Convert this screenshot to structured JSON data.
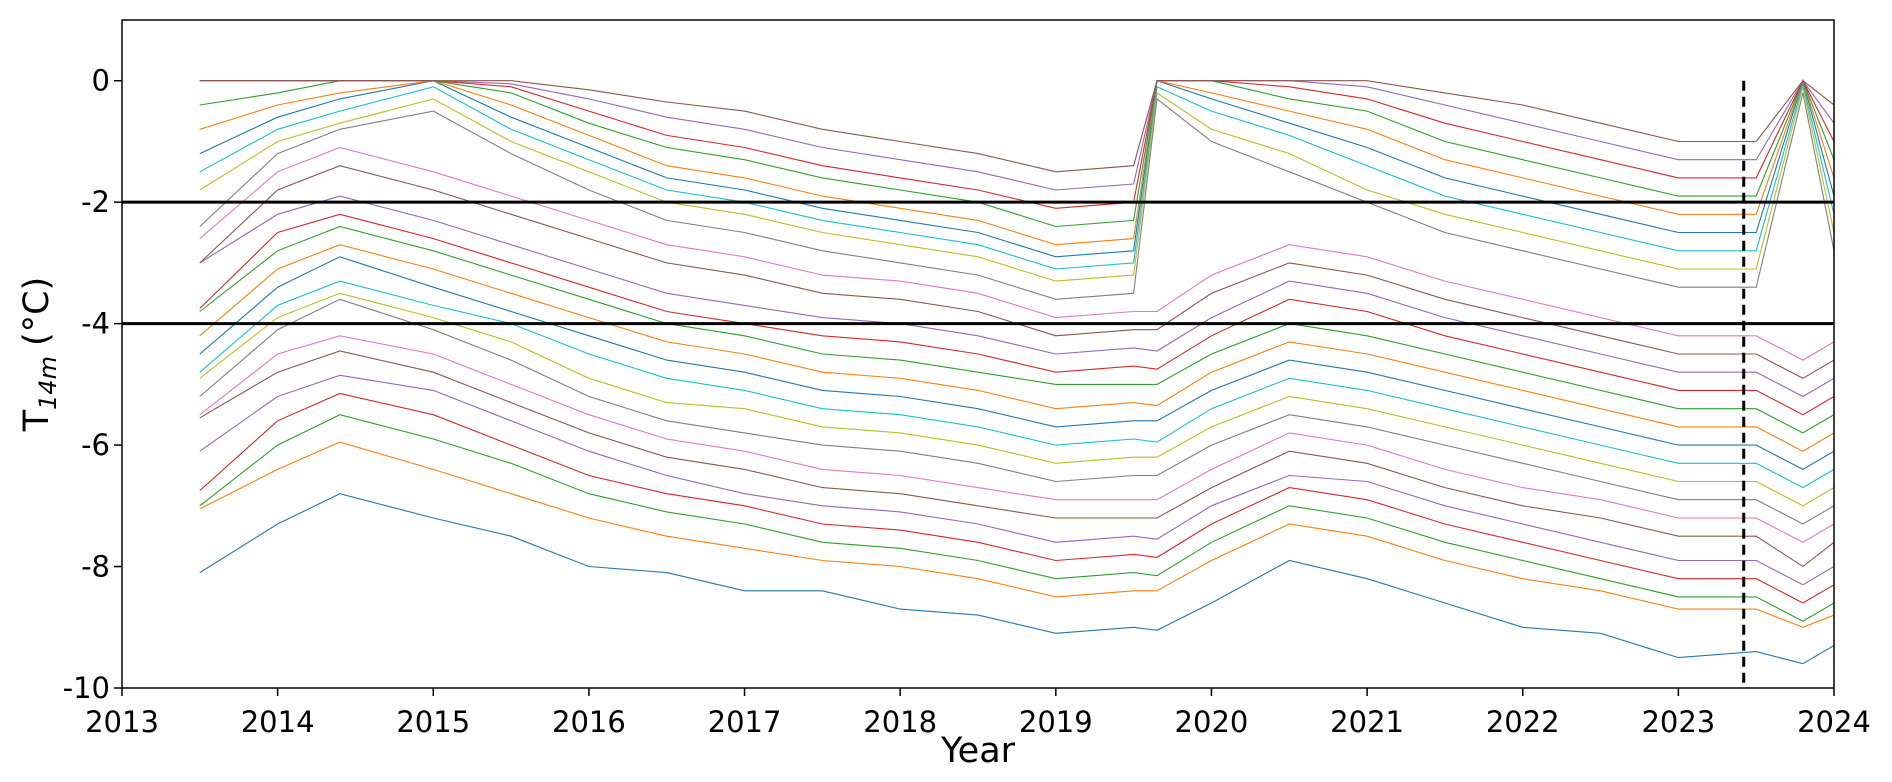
{
  "chart_data": {
    "type": "line",
    "title": "",
    "xlabel": "Year",
    "ylabel_main": "T",
    "ylabel_sub": "14m",
    "ylabel_unit": "(°C)",
    "xlim": [
      2013,
      2024
    ],
    "ylim": [
      -10,
      1
    ],
    "x_ticks": [
      2013,
      2014,
      2015,
      2016,
      2017,
      2018,
      2019,
      2020,
      2021,
      2022,
      2023,
      2024
    ],
    "x_tick_labels": [
      "2013",
      "2014",
      "2015",
      "2016",
      "2017",
      "2018",
      "2019",
      "2020",
      "2021",
      "2022",
      "2023",
      "2024"
    ],
    "y_ticks": [
      0,
      -2,
      -4,
      -6,
      -8,
      -10
    ],
    "y_tick_labels": [
      "0",
      "-2",
      "-4",
      "-6",
      "-8",
      "-10"
    ],
    "grid": false,
    "reference_lines": [
      {
        "orientation": "horizontal",
        "y": -2,
        "style": "solid",
        "color": "#000000"
      },
      {
        "orientation": "horizontal",
        "y": -4,
        "style": "solid",
        "color": "#000000"
      },
      {
        "orientation": "vertical",
        "x": 2023.42,
        "style": "dashed",
        "color": "#000000"
      }
    ],
    "palette": [
      "#1f77b4",
      "#ff7f0e",
      "#2ca02c",
      "#d62728",
      "#9467bd",
      "#8c564b",
      "#e377c2",
      "#7f7f7f",
      "#bcbd22",
      "#17becf"
    ],
    "series_x": [
      2013.5,
      2014.0,
      2014.4,
      2015.0,
      2015.5,
      2016.0,
      2016.5,
      2017.0,
      2017.5,
      2018.0,
      2018.5,
      2019.0,
      2019.5,
      2019.65,
      2020.0,
      2020.5,
      2021.0,
      2021.5,
      2022.0,
      2022.5,
      2023.0,
      2023.5,
      2023.8,
      2024.0
    ],
    "series": [
      {
        "values": [
          -8.1,
          -7.3,
          -6.8,
          -7.2,
          -7.5,
          -8.0,
          -8.1,
          -8.4,
          -8.4,
          -8.7,
          -8.8,
          -9.1,
          -9.0,
          -9.05,
          -8.6,
          -7.9,
          -8.2,
          -8.6,
          -9.0,
          -9.1,
          -9.5,
          -9.4,
          -9.6,
          -9.3
        ]
      },
      {
        "values": [
          -7.05,
          -6.4,
          -5.95,
          -6.4,
          -6.8,
          -7.2,
          -7.5,
          -7.7,
          -7.9,
          -8.0,
          -8.2,
          -8.5,
          -8.4,
          -8.4,
          -7.9,
          -7.3,
          -7.5,
          -7.9,
          -8.2,
          -8.4,
          -8.7,
          -8.7,
          -9.0,
          -8.8
        ]
      },
      {
        "values": [
          -7.0,
          -6.0,
          -5.5,
          -5.9,
          -6.3,
          -6.8,
          -7.1,
          -7.3,
          -7.6,
          -7.7,
          -7.9,
          -8.2,
          -8.1,
          -8.15,
          -7.6,
          -7.0,
          -7.2,
          -7.6,
          -7.9,
          -8.2,
          -8.5,
          -8.5,
          -8.9,
          -8.6
        ]
      },
      {
        "values": [
          -6.75,
          -5.6,
          -5.15,
          -5.5,
          -6.0,
          -6.5,
          -6.8,
          -7.0,
          -7.3,
          -7.4,
          -7.6,
          -7.9,
          -7.8,
          -7.85,
          -7.3,
          -6.7,
          -6.9,
          -7.3,
          -7.6,
          -7.9,
          -8.2,
          -8.2,
          -8.6,
          -8.3
        ]
      },
      {
        "values": [
          -6.1,
          -5.2,
          -4.85,
          -5.1,
          -5.6,
          -6.1,
          -6.5,
          -6.8,
          -7.0,
          -7.1,
          -7.3,
          -7.6,
          -7.5,
          -7.55,
          -7.0,
          -6.5,
          -6.6,
          -7.0,
          -7.3,
          -7.6,
          -7.9,
          -7.9,
          -8.3,
          -8.0
        ]
      },
      {
        "values": [
          -5.55,
          -4.8,
          -4.45,
          -4.8,
          -5.3,
          -5.8,
          -6.2,
          -6.4,
          -6.7,
          -6.8,
          -7.0,
          -7.2,
          -7.2,
          -7.2,
          -6.7,
          -6.1,
          -6.3,
          -6.7,
          -7.0,
          -7.2,
          -7.5,
          -7.5,
          -8.0,
          -7.6
        ]
      },
      {
        "values": [
          -5.5,
          -4.5,
          -4.2,
          -4.5,
          -5.0,
          -5.5,
          -5.9,
          -6.1,
          -6.4,
          -6.5,
          -6.7,
          -6.9,
          -6.9,
          -6.9,
          -6.4,
          -5.8,
          -6.0,
          -6.4,
          -6.7,
          -6.9,
          -7.2,
          -7.2,
          -7.6,
          -7.3
        ]
      },
      {
        "values": [
          -5.2,
          -4.1,
          -3.6,
          -4.1,
          -4.6,
          -5.2,
          -5.6,
          -5.8,
          -6.0,
          -6.1,
          -6.3,
          -6.6,
          -6.5,
          -6.5,
          -6.0,
          -5.5,
          -5.7,
          -6.0,
          -6.3,
          -6.6,
          -6.9,
          -6.9,
          -7.3,
          -7.0
        ]
      },
      {
        "values": [
          -4.9,
          -3.9,
          -3.5,
          -3.9,
          -4.3,
          -4.9,
          -5.3,
          -5.4,
          -5.7,
          -5.8,
          -6.0,
          -6.3,
          -6.2,
          -6.2,
          -5.7,
          -5.2,
          -5.4,
          -5.7,
          -6.0,
          -6.3,
          -6.6,
          -6.6,
          -7.0,
          -6.7
        ]
      },
      {
        "values": [
          -4.8,
          -3.7,
          -3.3,
          -3.7,
          -4.0,
          -4.5,
          -4.9,
          -5.1,
          -5.4,
          -5.5,
          -5.7,
          -6.0,
          -5.9,
          -5.95,
          -5.4,
          -4.9,
          -5.1,
          -5.4,
          -5.7,
          -6.0,
          -6.3,
          -6.3,
          -6.7,
          -6.4
        ]
      },
      {
        "values": [
          -4.5,
          -3.4,
          -2.9,
          -3.4,
          -3.8,
          -4.2,
          -4.6,
          -4.8,
          -5.1,
          -5.2,
          -5.4,
          -5.7,
          -5.6,
          -5.6,
          -5.1,
          -4.6,
          -4.8,
          -5.1,
          -5.4,
          -5.7,
          -6.0,
          -6.0,
          -6.4,
          -6.1
        ]
      },
      {
        "values": [
          -4.2,
          -3.1,
          -2.7,
          -3.1,
          -3.5,
          -3.9,
          -4.3,
          -4.5,
          -4.8,
          -4.9,
          -5.1,
          -5.4,
          -5.3,
          -5.35,
          -4.8,
          -4.3,
          -4.5,
          -4.8,
          -5.1,
          -5.4,
          -5.7,
          -5.7,
          -6.1,
          -5.8
        ]
      },
      {
        "values": [
          -3.8,
          -2.8,
          -2.4,
          -2.8,
          -3.2,
          -3.6,
          -4.0,
          -4.2,
          -4.5,
          -4.6,
          -4.8,
          -5.0,
          -5.0,
          -5.0,
          -4.5,
          -4.0,
          -4.2,
          -4.5,
          -4.8,
          -5.1,
          -5.4,
          -5.4,
          -5.8,
          -5.5
        ]
      },
      {
        "values": [
          -3.75,
          -2.5,
          -2.2,
          -2.6,
          -3.0,
          -3.4,
          -3.8,
          -4.0,
          -4.2,
          -4.3,
          -4.5,
          -4.8,
          -4.7,
          -4.75,
          -4.2,
          -3.6,
          -3.8,
          -4.2,
          -4.5,
          -4.8,
          -5.1,
          -5.1,
          -5.5,
          -5.2
        ]
      },
      {
        "values": [
          -3.0,
          -2.2,
          -1.9,
          -2.3,
          -2.7,
          -3.1,
          -3.5,
          -3.7,
          -3.9,
          -4.0,
          -4.2,
          -4.5,
          -4.4,
          -4.45,
          -3.9,
          -3.3,
          -3.5,
          -3.9,
          -4.2,
          -4.5,
          -4.8,
          -4.8,
          -5.2,
          -4.9
        ]
      },
      {
        "values": [
          -3.0,
          -1.8,
          -1.4,
          -1.8,
          -2.2,
          -2.6,
          -3.0,
          -3.2,
          -3.5,
          -3.6,
          -3.8,
          -4.2,
          -4.1,
          -4.1,
          -3.5,
          -3.0,
          -3.2,
          -3.6,
          -3.9,
          -4.2,
          -4.5,
          -4.5,
          -4.9,
          -4.6
        ]
      },
      {
        "values": [
          -2.6,
          -1.5,
          -1.1,
          -1.5,
          -1.9,
          -2.3,
          -2.7,
          -2.9,
          -3.2,
          -3.3,
          -3.5,
          -3.9,
          -3.8,
          -3.8,
          -3.2,
          -2.7,
          -2.9,
          -3.3,
          -3.6,
          -3.9,
          -4.2,
          -4.2,
          -4.6,
          -4.3
        ]
      },
      {
        "values": [
          -2.4,
          -1.2,
          -0.8,
          -0.5,
          -1.2,
          -1.8,
          -2.3,
          -2.5,
          -2.8,
          -3.0,
          -3.2,
          -3.6,
          -3.5,
          -0.3,
          -1.0,
          -1.5,
          -2.0,
          -2.5,
          -2.8,
          -3.1,
          -3.4,
          -3.4,
          -0.2,
          -2.8
        ]
      },
      {
        "values": [
          -1.8,
          -1.0,
          -0.7,
          -0.3,
          -1.0,
          -1.5,
          -2.0,
          -2.2,
          -2.5,
          -2.7,
          -2.9,
          -3.3,
          -3.2,
          -0.2,
          -0.8,
          -1.2,
          -1.8,
          -2.2,
          -2.5,
          -2.8,
          -3.1,
          -3.1,
          -0.1,
          -2.5
        ]
      },
      {
        "values": [
          -1.5,
          -0.8,
          -0.5,
          -0.1,
          -0.8,
          -1.3,
          -1.8,
          -2.0,
          -2.3,
          -2.5,
          -2.7,
          -3.1,
          -3.0,
          -0.1,
          -0.5,
          -0.9,
          -1.4,
          -1.9,
          -2.2,
          -2.5,
          -2.8,
          -2.8,
          -0.05,
          -2.2
        ]
      },
      {
        "values": [
          -1.2,
          -0.6,
          -0.3,
          0.0,
          -0.6,
          -1.1,
          -1.6,
          -1.8,
          -2.1,
          -2.3,
          -2.5,
          -2.9,
          -2.8,
          0.0,
          -0.3,
          -0.7,
          -1.1,
          -1.6,
          -1.9,
          -2.2,
          -2.5,
          -2.5,
          0.0,
          -1.9
        ]
      },
      {
        "values": [
          -0.8,
          -0.4,
          -0.2,
          0.0,
          -0.4,
          -0.9,
          -1.4,
          -1.6,
          -1.9,
          -2.1,
          -2.3,
          -2.7,
          -2.6,
          0.0,
          -0.2,
          -0.5,
          -0.8,
          -1.3,
          -1.6,
          -1.9,
          -2.2,
          -2.2,
          0.0,
          -1.6
        ]
      },
      {
        "values": [
          -0.4,
          -0.2,
          0.0,
          0.0,
          -0.2,
          -0.7,
          -1.1,
          -1.3,
          -1.6,
          -1.8,
          -2.0,
          -2.4,
          -2.3,
          0.0,
          0.0,
          -0.3,
          -0.5,
          -1.0,
          -1.3,
          -1.6,
          -1.9,
          -1.9,
          0.0,
          -1.3
        ]
      },
      {
        "values": [
          0.0,
          0.0,
          0.0,
          0.0,
          -0.1,
          -0.5,
          -0.9,
          -1.1,
          -1.4,
          -1.6,
          -1.8,
          -2.1,
          -2.0,
          0.0,
          0.0,
          -0.1,
          -0.3,
          -0.7,
          -1.0,
          -1.3,
          -1.6,
          -1.6,
          0.0,
          -1.0
        ]
      },
      {
        "values": [
          0.0,
          0.0,
          0.0,
          0.0,
          -0.05,
          -0.3,
          -0.6,
          -0.8,
          -1.1,
          -1.3,
          -1.5,
          -1.8,
          -1.7,
          0.0,
          0.0,
          0.0,
          -0.1,
          -0.4,
          -0.7,
          -1.0,
          -1.3,
          -1.3,
          0.0,
          -0.7
        ]
      },
      {
        "values": [
          0.0,
          0.0,
          0.0,
          0.0,
          0.0,
          -0.15,
          -0.35,
          -0.5,
          -0.8,
          -1.0,
          -1.2,
          -1.5,
          -1.4,
          0.0,
          0.0,
          0.0,
          0.0,
          -0.2,
          -0.4,
          -0.7,
          -1.0,
          -1.0,
          0.0,
          -0.4
        ]
      }
    ]
  }
}
